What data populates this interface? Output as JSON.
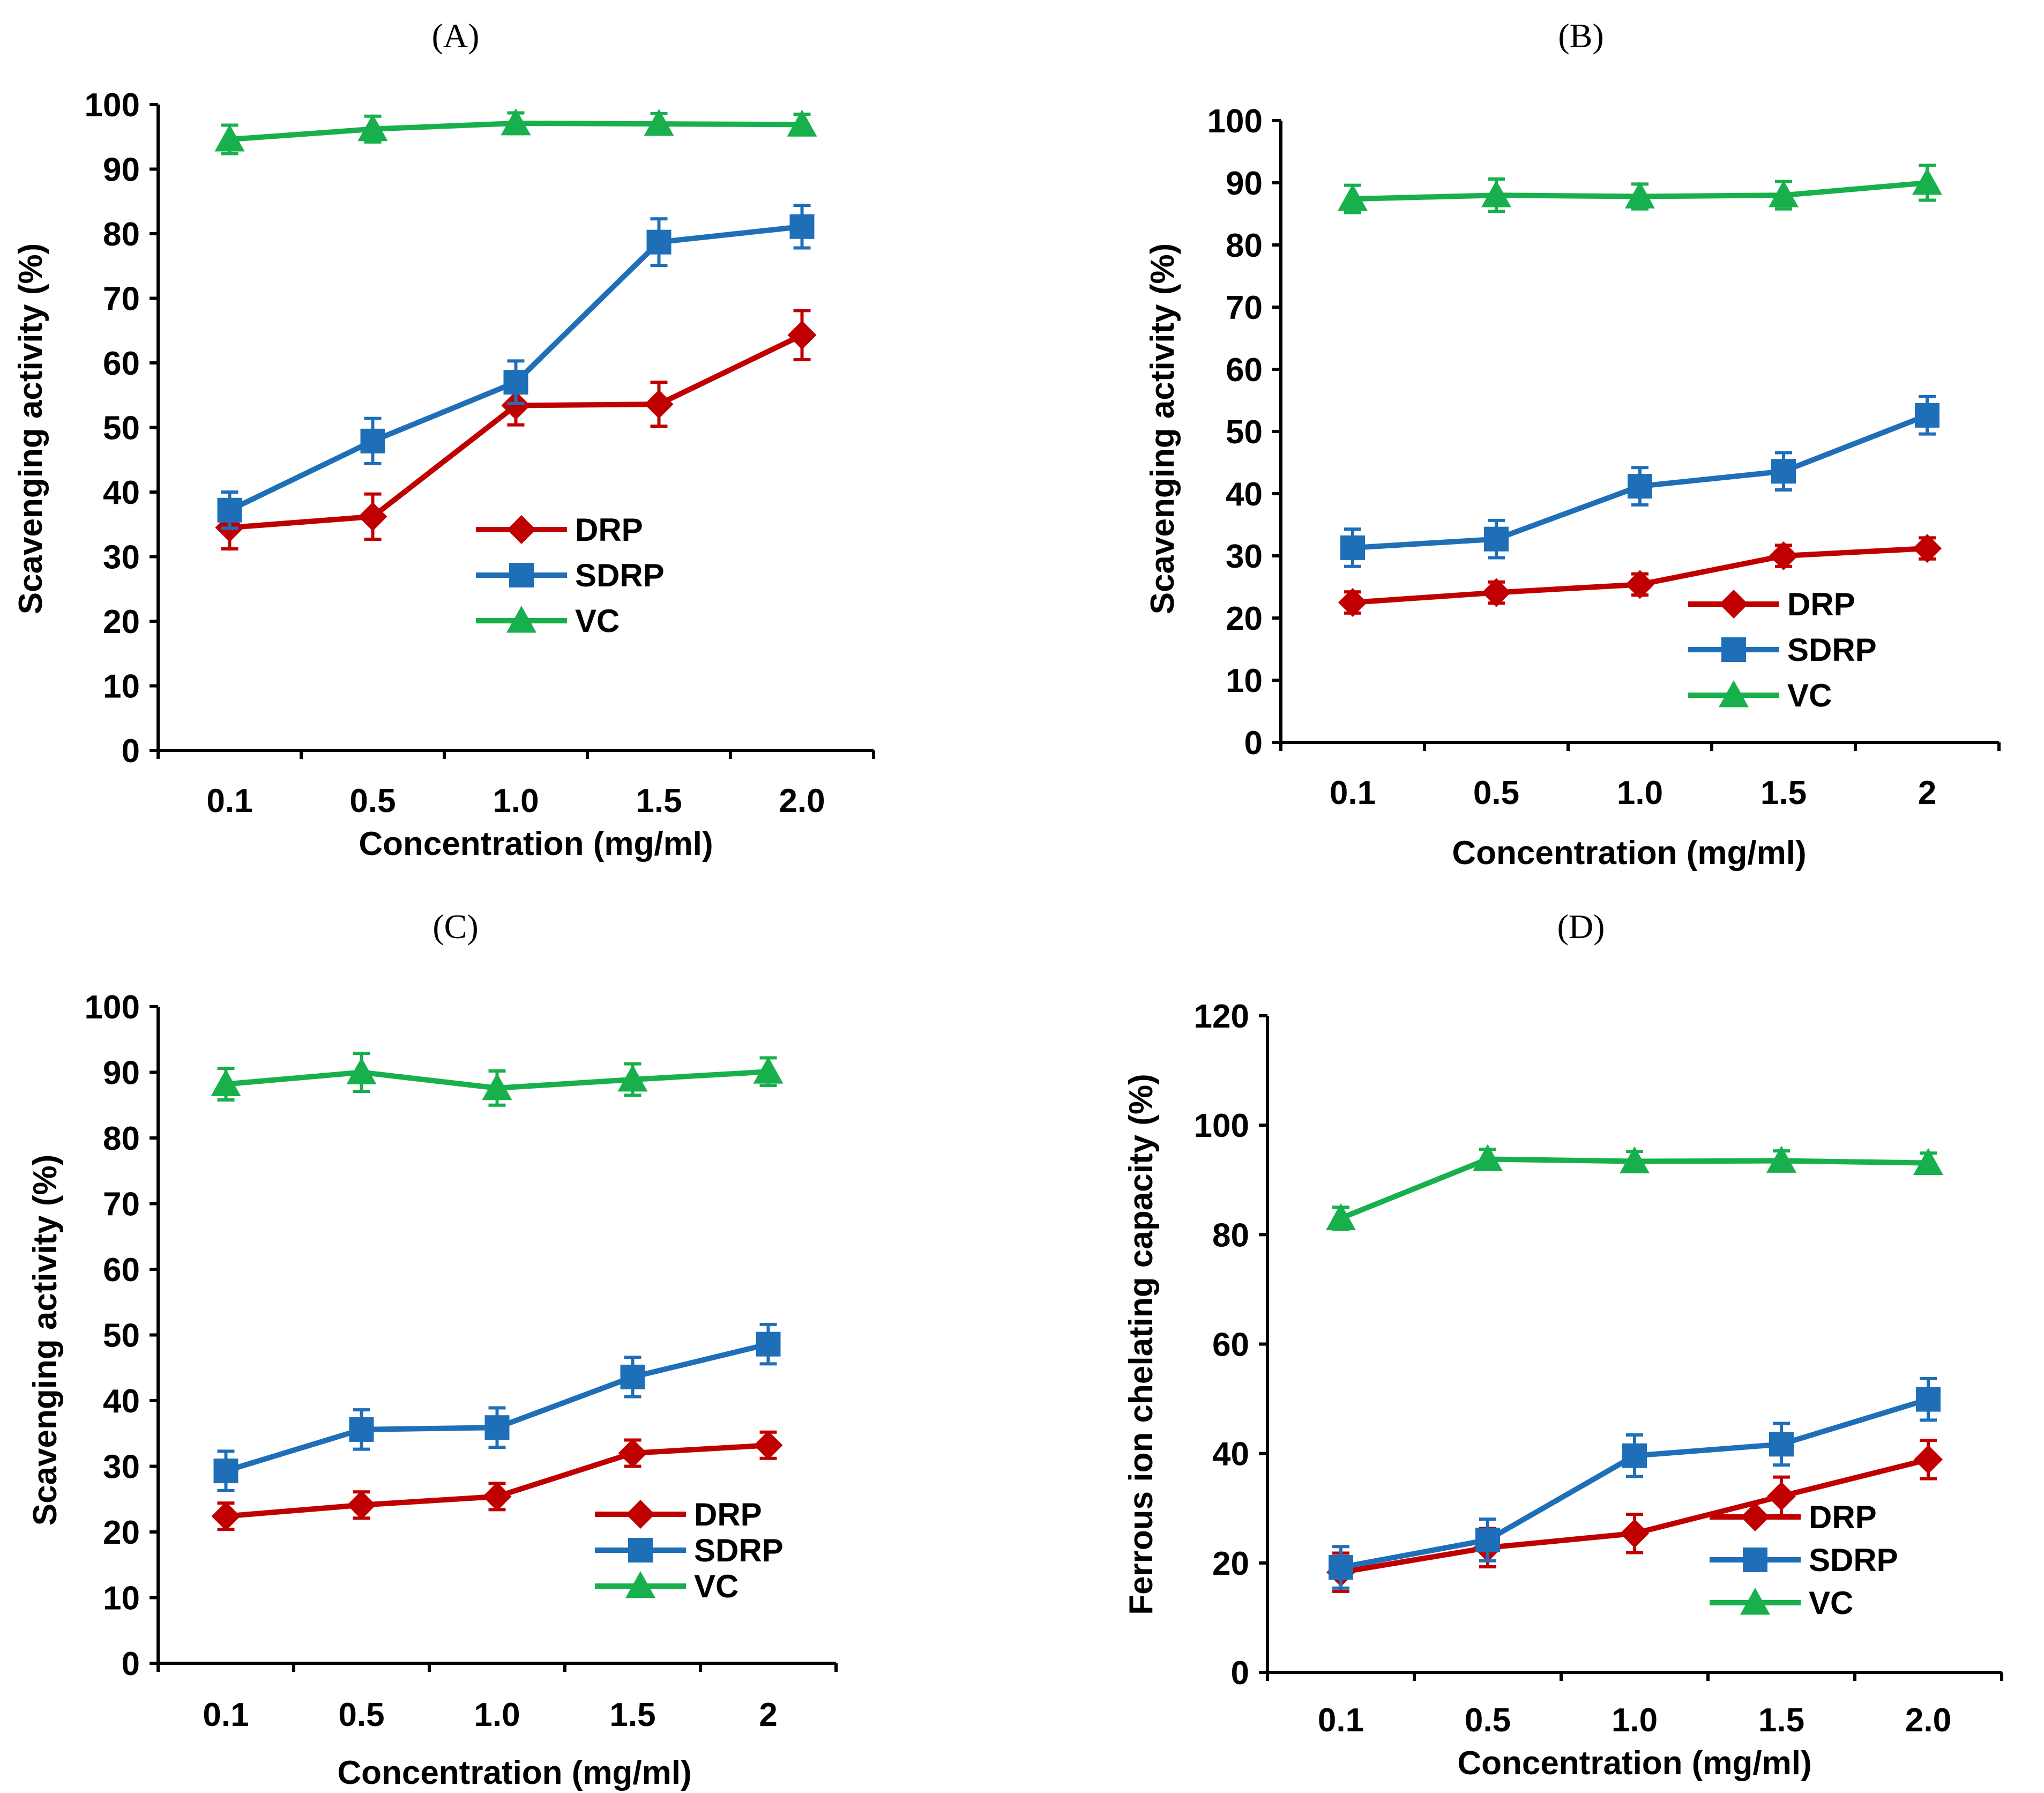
{
  "colors": {
    "DRP": "#c00000",
    "SDRP": "#1f6fb8",
    "VC": "#18b04c",
    "axis": "#000000"
  },
  "chart_data": [
    {
      "panel": "(A)",
      "type": "line",
      "title": "(A)",
      "xlabel": "Concentration (mg/ml)",
      "ylabel": "Scavenging activity (%)",
      "categories": [
        "0.1",
        "0.5",
        "1.0",
        "1.5",
        "2.0"
      ],
      "ylim": [
        0,
        100
      ],
      "yticks": [
        0,
        10,
        20,
        30,
        40,
        50,
        60,
        70,
        80,
        90,
        100
      ],
      "legend_position": "center-right",
      "series": [
        {
          "name": "DRP",
          "marker": "diamond",
          "values": [
            34.5,
            36.2,
            53.4,
            53.6,
            64.3
          ],
          "errors": [
            3.3,
            3.5,
            3.0,
            3.4,
            3.8
          ]
        },
        {
          "name": "SDRP",
          "marker": "square",
          "values": [
            37.2,
            47.9,
            57.0,
            78.7,
            81.1
          ],
          "errors": [
            2.8,
            3.5,
            3.3,
            3.6,
            3.3
          ]
        },
        {
          "name": "VC",
          "marker": "triangle",
          "values": [
            94.6,
            96.2,
            97.1,
            97.0,
            96.9
          ],
          "errors": [
            2.2,
            2.0,
            1.6,
            1.6,
            1.6
          ]
        }
      ]
    },
    {
      "panel": "(B)",
      "type": "line",
      "title": "(B)",
      "xlabel": "Concentration (mg/ml)",
      "ylabel": "Scavenging activity (%)",
      "categories": [
        "0.1",
        "0.5",
        "1.0",
        "1.5",
        "2"
      ],
      "ylim": [
        0,
        100
      ],
      "yticks": [
        0,
        10,
        20,
        30,
        40,
        50,
        60,
        70,
        80,
        90,
        100
      ],
      "legend_position": "lower-right",
      "series": [
        {
          "name": "DRP",
          "marker": "diamond",
          "values": [
            22.5,
            24.1,
            25.4,
            30.0,
            31.2
          ],
          "errors": [
            1.7,
            1.7,
            1.7,
            1.7,
            1.7
          ]
        },
        {
          "name": "SDRP",
          "marker": "square",
          "values": [
            31.3,
            32.7,
            41.2,
            43.6,
            52.6
          ],
          "errors": [
            3.0,
            3.0,
            3.0,
            3.0,
            3.0
          ]
        },
        {
          "name": "VC",
          "marker": "triangle",
          "values": [
            87.4,
            88.0,
            87.8,
            88.0,
            90.0
          ],
          "errors": [
            2.2,
            2.6,
            2.0,
            2.2,
            2.8
          ]
        }
      ]
    },
    {
      "panel": "(C)",
      "type": "line",
      "title": "(C)",
      "xlabel": "Concentration (mg/ml)",
      "ylabel": "Scavenging activity (%)",
      "categories": [
        "0.1",
        "0.5",
        "1.0",
        "1.5",
        "2"
      ],
      "ylim": [
        0,
        100
      ],
      "yticks": [
        0,
        10,
        20,
        30,
        40,
        50,
        60,
        70,
        80,
        90,
        100
      ],
      "legend_position": "lower-right",
      "series": [
        {
          "name": "DRP",
          "marker": "diamond",
          "values": [
            22.4,
            24.1,
            25.4,
            32.0,
            33.2
          ],
          "errors": [
            2.0,
            2.0,
            2.0,
            2.0,
            2.0
          ]
        },
        {
          "name": "SDRP",
          "marker": "square",
          "values": [
            29.3,
            35.6,
            35.9,
            43.6,
            48.6
          ],
          "errors": [
            3.0,
            3.0,
            3.0,
            3.0,
            3.0
          ]
        },
        {
          "name": "VC",
          "marker": "triangle",
          "values": [
            88.2,
            90.0,
            87.6,
            88.9,
            90.1
          ],
          "errors": [
            2.4,
            2.9,
            2.6,
            2.4,
            2.1
          ]
        }
      ]
    },
    {
      "panel": "(D)",
      "type": "line",
      "title": "(D)",
      "xlabel": "Concentration (mg/ml)",
      "ylabel": "Ferrous ion chelating capacity (%)",
      "categories": [
        "0.1",
        "0.5",
        "1.0",
        "1.5",
        "2.0"
      ],
      "ylim": [
        0,
        120
      ],
      "yticks": [
        0,
        20,
        40,
        60,
        80,
        100,
        120
      ],
      "legend_position": "lower-right",
      "series": [
        {
          "name": "DRP",
          "marker": "diamond",
          "values": [
            18.3,
            22.8,
            25.4,
            32.2,
            38.9
          ],
          "errors": [
            3.5,
            3.5,
            3.5,
            3.5,
            3.5
          ]
        },
        {
          "name": "SDRP",
          "marker": "square",
          "values": [
            19.2,
            24.2,
            39.6,
            41.7,
            49.9
          ],
          "errors": [
            3.8,
            3.8,
            3.8,
            3.8,
            3.8
          ]
        },
        {
          "name": "VC",
          "marker": "triangle",
          "values": [
            83.0,
            93.8,
            93.4,
            93.5,
            93.1
          ],
          "errors": [
            2.0,
            1.8,
            1.8,
            1.8,
            1.8
          ]
        }
      ]
    }
  ]
}
